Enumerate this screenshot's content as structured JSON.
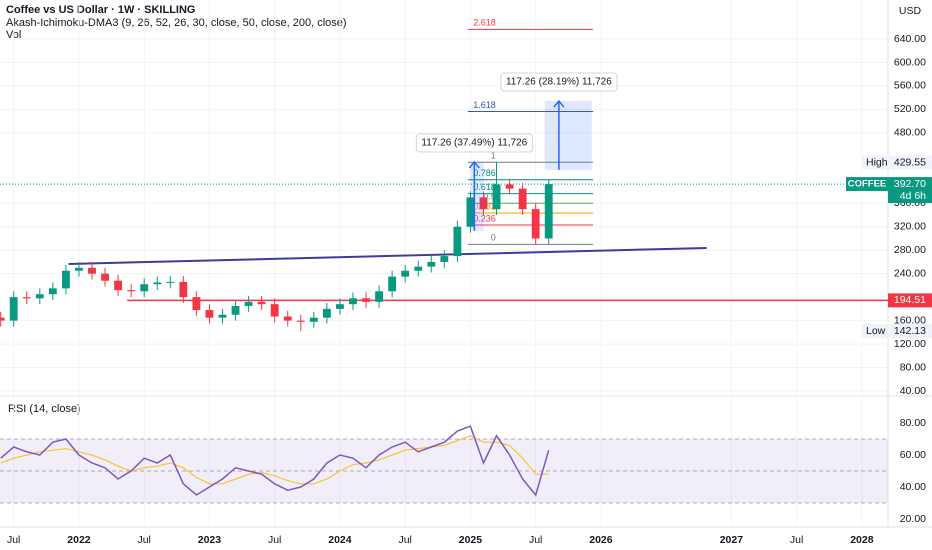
{
  "chart_data": {
    "type": "candlestick",
    "title": "Coffee vs US Dollar · 1W · SKILLING",
    "indicators": [
      "Akash-Ichimoku-DMA3 (9, 26, 52, 26, 30, close, 50, close, 200, close)",
      "Vol"
    ],
    "currency": "USD",
    "x": [
      2021.4,
      2021.5,
      2021.6,
      2021.7,
      2021.8,
      2021.9,
      2022.0,
      2022.1,
      2022.2,
      2022.3,
      2022.4,
      2022.5,
      2022.6,
      2022.7,
      2022.8,
      2022.9,
      2023.0,
      2023.1,
      2023.2,
      2023.3,
      2023.4,
      2023.5,
      2023.6,
      2023.7,
      2023.8,
      2023.9,
      2024.0,
      2024.1,
      2024.2,
      2024.3,
      2024.4,
      2024.5,
      2024.6,
      2024.7,
      2024.8,
      2024.9,
      2025.0,
      2025.1,
      2025.2,
      2025.3,
      2025.4,
      2025.5,
      2025.6
    ],
    "open": [
      165,
      160,
      200,
      198,
      205,
      215,
      245,
      250,
      240,
      228,
      212,
      210,
      222,
      225,
      226,
      200,
      178,
      165,
      170,
      185,
      192,
      188,
      167,
      160,
      158,
      165,
      180,
      188,
      198,
      192,
      210,
      235,
      245,
      252,
      260,
      270,
      320,
      370,
      350,
      392,
      385,
      350,
      300
    ],
    "high": [
      175,
      210,
      210,
      215,
      225,
      255,
      260,
      260,
      250,
      238,
      222,
      232,
      235,
      236,
      236,
      210,
      188,
      180,
      195,
      202,
      202,
      198,
      177,
      170,
      175,
      190,
      198,
      208,
      208,
      220,
      245,
      255,
      262,
      270,
      280,
      330,
      380,
      380,
      429.55,
      402,
      395,
      360,
      400
    ],
    "low": [
      150,
      150,
      188,
      188,
      195,
      205,
      235,
      230,
      218,
      202,
      200,
      200,
      212,
      215,
      190,
      168,
      155,
      155,
      160,
      175,
      178,
      157,
      150,
      142.13,
      148,
      155,
      170,
      178,
      182,
      182,
      200,
      225,
      235,
      242,
      250,
      260,
      310,
      340,
      340,
      375,
      340,
      290,
      290
    ],
    "close": [
      160,
      200,
      198,
      205,
      215,
      245,
      250,
      240,
      228,
      212,
      210,
      222,
      225,
      226,
      200,
      178,
      165,
      170,
      185,
      192,
      188,
      167,
      160,
      158,
      165,
      180,
      188,
      198,
      192,
      210,
      235,
      245,
      252,
      260,
      270,
      320,
      370,
      350,
      392,
      385,
      350,
      300,
      392.7
    ],
    "up_color": "#089981",
    "down_color": "#f23645",
    "xlim": [
      2021.395,
      2028.2
    ],
    "xticks": [
      {
        "value": 2021.5,
        "label": "Jul"
      },
      2022,
      {
        "value": 2022.5,
        "label": "Jul"
      },
      2023,
      {
        "value": 2023.5,
        "label": "Jul"
      },
      2024,
      {
        "value": 2024.5,
        "label": "Jul"
      },
      2025,
      {
        "value": 2025.5,
        "label": "Jul"
      },
      2026,
      2027,
      {
        "value": 2027.5,
        "label": "Jul"
      },
      2028
    ],
    "ylim": [
      33.2,
      706.5
    ],
    "yticks": [
      {
        "value": 40,
        "label": "40.00"
      },
      {
        "value": 80,
        "label": "80.00"
      },
      {
        "value": 120,
        "label": "120.00"
      },
      {
        "value": 160,
        "label": "160.00"
      },
      {
        "value": 240,
        "label": "240.00"
      },
      {
        "value": 280,
        "label": "280.00"
      },
      {
        "value": 320,
        "label": "320.00"
      },
      {
        "value": 360,
        "label": "360.00"
      },
      {
        "value": 480,
        "label": "480.00"
      },
      {
        "value": 520,
        "label": "520.00"
      },
      {
        "value": 560,
        "label": "560.00"
      },
      {
        "value": 600,
        "label": "600.00"
      },
      {
        "value": 640,
        "label": "640.00"
      }
    ],
    "high_marker": {
      "label": "High",
      "value": 429.55
    },
    "low_marker": {
      "label": "Low",
      "value": 142.13
    },
    "last_price": {
      "symbol": "COFFEE",
      "value": {
        "value": 392.7,
        "label": "392.70"
      },
      "countdown": "4d 6h",
      "color": "#089981"
    },
    "horizontal_line": {
      "value": 194.51,
      "x_start": 2022.37,
      "color": "#f23645"
    },
    "trendline": {
      "x": [
        2021.92,
        2026.81
      ],
      "y": [
        256.5,
        283.8
      ],
      "color": "#3c3c9e"
    },
    "fib": {
      "x": [
        2024.98,
        2025.94
      ],
      "levels": [
        0,
        0.236,
        0.382,
        0.5,
        0.618,
        0.786,
        1,
        1.618,
        2.618
      ],
      "prices": [
        290,
        323,
        343.5,
        360,
        376.5,
        400,
        430,
        516.5,
        656.5
      ],
      "colors": [
        "#787b86",
        "#f23645",
        "#ff9800",
        "#4caf50",
        "#089981",
        "#00897b",
        "#787b86",
        "#3f51b5",
        "#f23645"
      ]
    },
    "measures": [
      {
        "label": "117.26 (37.49%) 11,726",
        "x": [
          2025.0,
          2025.1
        ],
        "from": 313,
        "to": 430.26
      },
      {
        "label": "117.26 (28.19%) 11,726",
        "x": [
          2025.57,
          2025.93
        ],
        "from": 417,
        "to": 534.26
      }
    ],
    "rsi": {
      "title": "RSI (14, close)",
      "ylim": [
        15,
        96.25
      ],
      "yticks": [
        {
          "value": 20,
          "label": "20.00"
        },
        {
          "value": 40,
          "label": "40.00"
        },
        {
          "value": 60,
          "label": "60.00"
        },
        {
          "value": 80,
          "label": "80.00"
        }
      ],
      "levels": [
        30,
        50,
        70
      ],
      "values": [
        58,
        65,
        62,
        60,
        68,
        70,
        60,
        55,
        52,
        45,
        50,
        58,
        55,
        60,
        42,
        35,
        40,
        45,
        52,
        50,
        48,
        42,
        38,
        40,
        45,
        55,
        60,
        58,
        52,
        60,
        65,
        68,
        62,
        65,
        68,
        75,
        78,
        55,
        72,
        60,
        45,
        35,
        63
      ],
      "signal": [
        55,
        58,
        60,
        62,
        63,
        64,
        62,
        60,
        57,
        53,
        50,
        52,
        53,
        55,
        52,
        46,
        42,
        42,
        45,
        48,
        49,
        47,
        44,
        42,
        42,
        45,
        50,
        54,
        55,
        57,
        60,
        63,
        64,
        65,
        66,
        69,
        72,
        68,
        68,
        66,
        58,
        48,
        48
      ],
      "color": "#7e57c2",
      "signal_color": "#f7c531"
    }
  }
}
